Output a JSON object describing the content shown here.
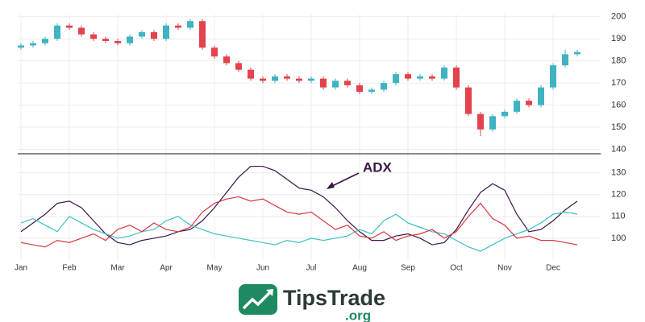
{
  "chart_data": [
    {
      "type": "candlestick",
      "open": [
        186,
        187,
        188,
        190,
        196,
        195,
        192,
        190,
        189,
        188,
        191,
        193,
        190,
        196,
        195,
        198,
        186,
        182,
        179,
        176,
        172,
        171,
        173,
        172,
        171,
        172,
        168,
        171,
        169,
        166,
        167,
        170,
        174,
        172,
        173,
        172,
        177,
        168,
        156,
        149,
        155,
        157,
        162,
        160,
        168,
        178,
        183
      ],
      "high": [
        188,
        189,
        191,
        197,
        197,
        196,
        193,
        191,
        190,
        192,
        194,
        194,
        197,
        197,
        199,
        199,
        187,
        183,
        180,
        177,
        173,
        174,
        174,
        173,
        173,
        173,
        172,
        172,
        170,
        168,
        171,
        175,
        175,
        174,
        174,
        178,
        178,
        169,
        157,
        156,
        158,
        163,
        163,
        169,
        179,
        185,
        185
      ],
      "low": [
        185,
        186,
        187,
        189,
        194,
        191,
        189,
        188,
        187,
        187,
        190,
        189,
        189,
        194,
        194,
        185,
        181,
        178,
        175,
        171,
        170,
        170,
        171,
        170,
        170,
        167,
        167,
        168,
        165,
        165,
        166,
        169,
        171,
        171,
        171,
        171,
        167,
        155,
        146,
        148,
        154,
        156,
        159,
        159,
        167,
        177,
        182
      ],
      "close": [
        187,
        188,
        190,
        196,
        195,
        192,
        190,
        189,
        188,
        191,
        193,
        190,
        196,
        195,
        198,
        186,
        182,
        179,
        176,
        172,
        171,
        173,
        172,
        171,
        172,
        168,
        171,
        169,
        166,
        167,
        170,
        174,
        172,
        173,
        172,
        177,
        168,
        156,
        149,
        155,
        157,
        162,
        160,
        168,
        178,
        183,
        184
      ],
      "up_color": "#3fb3c2",
      "down_color": "#e2434c",
      "ylim": [
        138,
        201
      ],
      "yticks": [
        140,
        150,
        160,
        170,
        180,
        190,
        200
      ],
      "grid": true
    },
    {
      "type": "line",
      "categories": [
        "Jan",
        null,
        null,
        null,
        "Feb",
        null,
        null,
        null,
        "Mar",
        null,
        null,
        null,
        "Apr",
        null,
        null,
        null,
        "May",
        null,
        null,
        null,
        "Jun",
        null,
        null,
        null,
        "Jul",
        null,
        null,
        null,
        "Aug",
        null,
        null,
        null,
        "Sep",
        null,
        null,
        null,
        "Oct",
        null,
        null,
        null,
        "Nov",
        null,
        null,
        null,
        "Dec",
        null,
        null
      ],
      "series": [
        {
          "color": "#3a1747",
          "values": [
            103,
            107,
            111,
            116,
            117,
            114,
            108,
            102,
            98,
            97,
            99,
            100,
            101,
            103,
            104,
            108,
            114,
            121,
            128,
            133,
            133,
            131,
            127,
            123,
            122,
            119,
            114,
            108,
            103,
            99,
            99,
            101,
            102,
            100,
            97,
            98,
            104,
            113,
            121,
            125,
            122,
            111,
            103,
            104,
            108,
            113,
            117
          ]
        },
        {
          "color": "#3fc0c6",
          "values": [
            107,
            109,
            106,
            103,
            110,
            107,
            104,
            102,
            100,
            101,
            103,
            104,
            108,
            110,
            106,
            104,
            102,
            101,
            100,
            99,
            98,
            97,
            99,
            98,
            100,
            99,
            100,
            101,
            104,
            102,
            108,
            111,
            107,
            105,
            103,
            102,
            99,
            96,
            94,
            97,
            100,
            102,
            104,
            107,
            111,
            112,
            111
          ]
        },
        {
          "color": "#d9363e",
          "values": [
            98,
            97,
            96,
            99,
            98,
            100,
            102,
            99,
            104,
            106,
            103,
            107,
            104,
            103,
            105,
            112,
            116,
            118,
            119,
            117,
            118,
            115,
            112,
            111,
            112,
            108,
            104,
            106,
            101,
            100,
            103,
            99,
            101,
            102,
            104,
            100,
            103,
            110,
            116,
            109,
            106,
            100,
            101,
            99,
            99,
            98,
            97
          ]
        }
      ],
      "annotation": "ADX",
      "ylim": [
        90,
        138
      ],
      "yticks": [
        100,
        110,
        120,
        130
      ],
      "grid": true
    }
  ],
  "logo": {
    "name": "TipsTrade",
    "domain": ".org"
  }
}
